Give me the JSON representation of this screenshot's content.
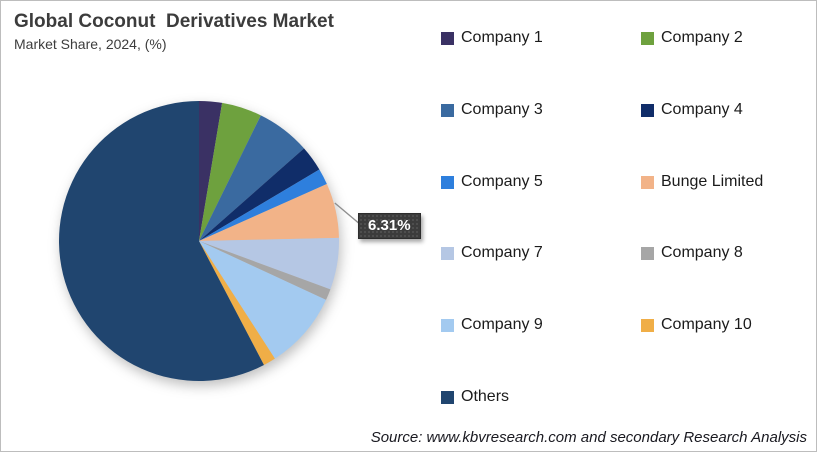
{
  "header": {
    "title": "Global Coconut  Derivatives Market",
    "subtitle": "Market Share, 2024, (%)"
  },
  "callout": {
    "label": "6.31%",
    "target": "Bunge Limited"
  },
  "footer": {
    "source": "Source: www.kbvresearch.com and secondary Research Analysis"
  },
  "chart_data": {
    "type": "pie",
    "title": "Global Coconut Derivatives Market",
    "subtitle": "Market Share, 2024, (%)",
    "unit": "%",
    "start_angle_deg": 0,
    "direction": "clockwise",
    "legend_position": "right",
    "annotation": {
      "slice": "Bunge Limited",
      "text": "6.31%"
    },
    "slices": [
      {
        "label": "Company 1",
        "value": 2.64,
        "color": "#3a3164"
      },
      {
        "label": "Company 2",
        "value": 4.64,
        "color": "#6ea13e"
      },
      {
        "label": "Company 3",
        "value": 6.22,
        "color": "#3a6aa0"
      },
      {
        "label": "Company 4",
        "value": 2.97,
        "color": "#102d69"
      },
      {
        "label": "Company 5",
        "value": 1.86,
        "color": "#2e7fdd"
      },
      {
        "label": "Bunge Limited",
        "value": 6.31,
        "color": "#f2b388"
      },
      {
        "label": "Company 7",
        "value": 5.97,
        "color": "#b5c7e4"
      },
      {
        "label": "Company 8",
        "value": 1.3,
        "color": "#a6a6a6"
      },
      {
        "label": "Company 9",
        "value": 8.97,
        "color": "#a3caf0"
      },
      {
        "label": "Company 10",
        "value": 1.44,
        "color": "#f0ae47"
      },
      {
        "label": "Others",
        "value": 57.68,
        "color": "#20456f"
      }
    ]
  }
}
